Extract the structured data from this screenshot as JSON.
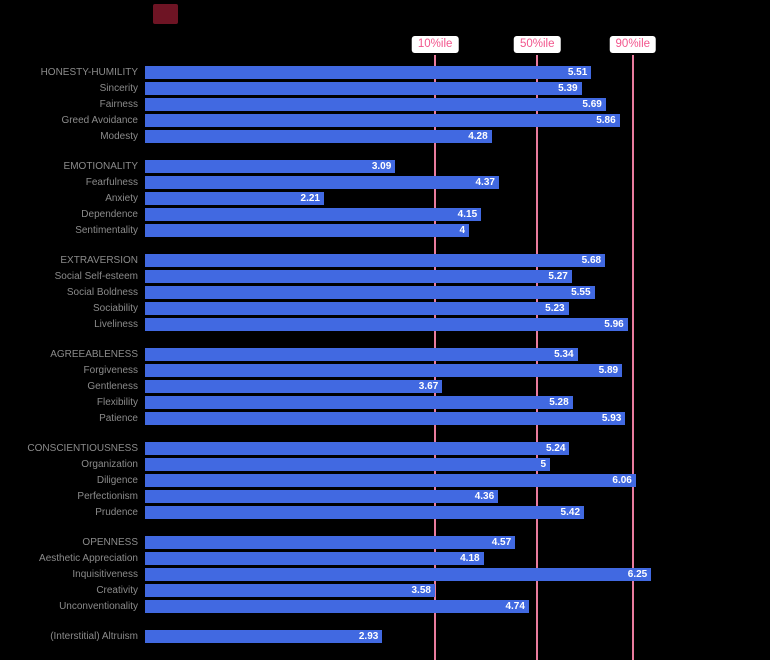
{
  "colors": {
    "background": "#000000",
    "bar": "#4169e1",
    "reference_line": "#e87b9d",
    "reference_label_text": "#f2568d",
    "reference_label_bg": "#ffffff",
    "row_label_text": "#8b8b8b",
    "bar_value_text": "#ffffff",
    "dark_red_block": "#6e1424"
  },
  "chart_data": {
    "type": "bar",
    "orientation": "horizontal",
    "title": "",
    "xlabel": "",
    "ylabel": "",
    "axis": {
      "min": 0,
      "max": 7,
      "gridlines": false
    },
    "legend_position": "none",
    "reference_lines": [
      {
        "label": "10%ile",
        "value": 3.57
      },
      {
        "label": "50%ile",
        "value": 4.83
      },
      {
        "label": "90%ile",
        "value": 6.01
      }
    ],
    "groups": [
      {
        "name": "HONESTY-HUMILITY",
        "rows": [
          {
            "label": "HONESTY-HUMILITY",
            "value": 5.51,
            "display": "5.51",
            "header": true
          },
          {
            "label": "Sincerity",
            "value": 5.39,
            "display": "5.39"
          },
          {
            "label": "Fairness",
            "value": 5.69,
            "display": "5.69"
          },
          {
            "label": "Greed Avoidance",
            "value": 5.86,
            "display": "5.86"
          },
          {
            "label": "Modesty",
            "value": 4.28,
            "display": "4.28"
          }
        ]
      },
      {
        "name": "EMOTIONALITY",
        "rows": [
          {
            "label": "EMOTIONALITY",
            "value": 3.09,
            "display": "3.09",
            "header": true
          },
          {
            "label": "Fearfulness",
            "value": 4.37,
            "display": "4.37"
          },
          {
            "label": "Anxiety",
            "value": 2.21,
            "display": "2.21"
          },
          {
            "label": "Dependence",
            "value": 4.15,
            "display": "4.15"
          },
          {
            "label": "Sentimentality",
            "value": 4,
            "display": "4"
          }
        ]
      },
      {
        "name": "EXTRAVERSION",
        "rows": [
          {
            "label": "EXTRAVERSION",
            "value": 5.68,
            "display": "5.68",
            "header": true
          },
          {
            "label": "Social Self-esteem",
            "value": 5.27,
            "display": "5.27"
          },
          {
            "label": "Social Boldness",
            "value": 5.55,
            "display": "5.55"
          },
          {
            "label": "Sociability",
            "value": 5.23,
            "display": "5.23"
          },
          {
            "label": "Liveliness",
            "value": 5.96,
            "display": "5.96"
          }
        ]
      },
      {
        "name": "AGREEABLENESS",
        "rows": [
          {
            "label": "AGREEABLENESS",
            "value": 5.34,
            "display": "5.34",
            "header": true
          },
          {
            "label": "Forgiveness",
            "value": 5.89,
            "display": "5.89"
          },
          {
            "label": "Gentleness",
            "value": 3.67,
            "display": "3.67"
          },
          {
            "label": "Flexibility",
            "value": 5.28,
            "display": "5.28"
          },
          {
            "label": "Patience",
            "value": 5.93,
            "display": "5.93"
          }
        ]
      },
      {
        "name": "CONSCIENTIOUSNESS",
        "rows": [
          {
            "label": "CONSCIENTIOUSNESS",
            "value": 5.24,
            "display": "5.24",
            "header": true
          },
          {
            "label": "Organization",
            "value": 5,
            "display": "5"
          },
          {
            "label": "Diligence",
            "value": 6.06,
            "display": "6.06"
          },
          {
            "label": "Perfectionism",
            "value": 4.36,
            "display": "4.36"
          },
          {
            "label": "Prudence",
            "value": 5.42,
            "display": "5.42"
          }
        ]
      },
      {
        "name": "OPENNESS",
        "rows": [
          {
            "label": "OPENNESS",
            "value": 4.57,
            "display": "4.57",
            "header": true
          },
          {
            "label": "Aesthetic Appreciation",
            "value": 4.18,
            "display": "4.18"
          },
          {
            "label": "Inquisitiveness",
            "value": 6.25,
            "display": "6.25"
          },
          {
            "label": "Creativity",
            "value": 3.58,
            "display": "3.58"
          },
          {
            "label": "Unconventionality",
            "value": 4.74,
            "display": "4.74"
          }
        ]
      },
      {
        "name": "(Interstitial) Altruism",
        "rows": [
          {
            "label": "(Interstitial) Altruism",
            "value": 2.93,
            "display": "2.93"
          }
        ]
      }
    ]
  }
}
